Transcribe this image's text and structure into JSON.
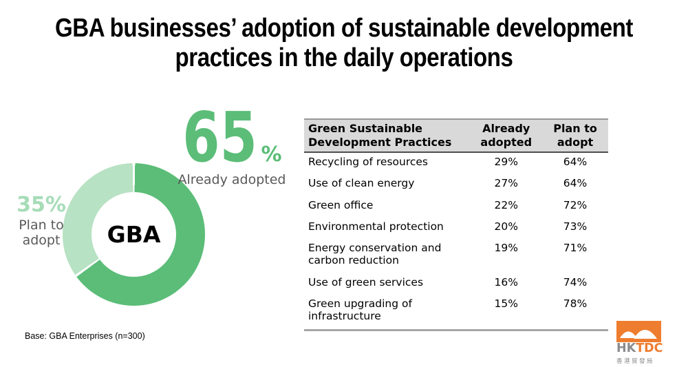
{
  "title": {
    "lines": [
      "GBA businesses’ adoption of sustainable development",
      "practices in the daily operations"
    ]
  },
  "ui": {
    "percent_sign": "%"
  },
  "chart_data": [
    {
      "type": "pie",
      "subtype": "donut",
      "title": "GBA businesses’ adoption of sustainable development practices in the daily operations",
      "labels": [
        "Already adopted",
        "Plan to adopt"
      ],
      "values": [
        65,
        35
      ],
      "unit": "%",
      "center_label": "GBA",
      "colors": [
        "#5BBD78",
        "#B7E2C3"
      ],
      "start_angle_deg": 0,
      "direction": "clockwise",
      "legend_position": "callouts"
    },
    {
      "type": "table",
      "columns": [
        "Green Sustainable Development Practices",
        "Already adopted",
        "Plan to adopt"
      ],
      "rows": [
        {
          "practice": "Recycling of resources",
          "already_pct": 29,
          "plan_pct": 64
        },
        {
          "practice": "Use of clean energy",
          "already_pct": 27,
          "plan_pct": 64
        },
        {
          "practice": "Green office",
          "already_pct": 22,
          "plan_pct": 72
        },
        {
          "practice": "Environmental protection",
          "already_pct": 20,
          "plan_pct": 73
        },
        {
          "practice": "Energy conservation and carbon reduction",
          "already_pct": 19,
          "plan_pct": 71
        },
        {
          "practice": "Use of green services",
          "already_pct": 16,
          "plan_pct": 74
        },
        {
          "practice": "Green upgrading of infrastructure",
          "already_pct": 15,
          "plan_pct": 78
        }
      ],
      "header_bg": "#D9D9D9"
    }
  ],
  "footer": {
    "base_note": "Base: GBA Enterprises (n=300)"
  },
  "logo": {
    "brand_gray": "HK",
    "brand_orange": "TDC",
    "chinese": "香港貿發局",
    "orange": "#EE7D2F",
    "gray": "#8B8B8E"
  }
}
